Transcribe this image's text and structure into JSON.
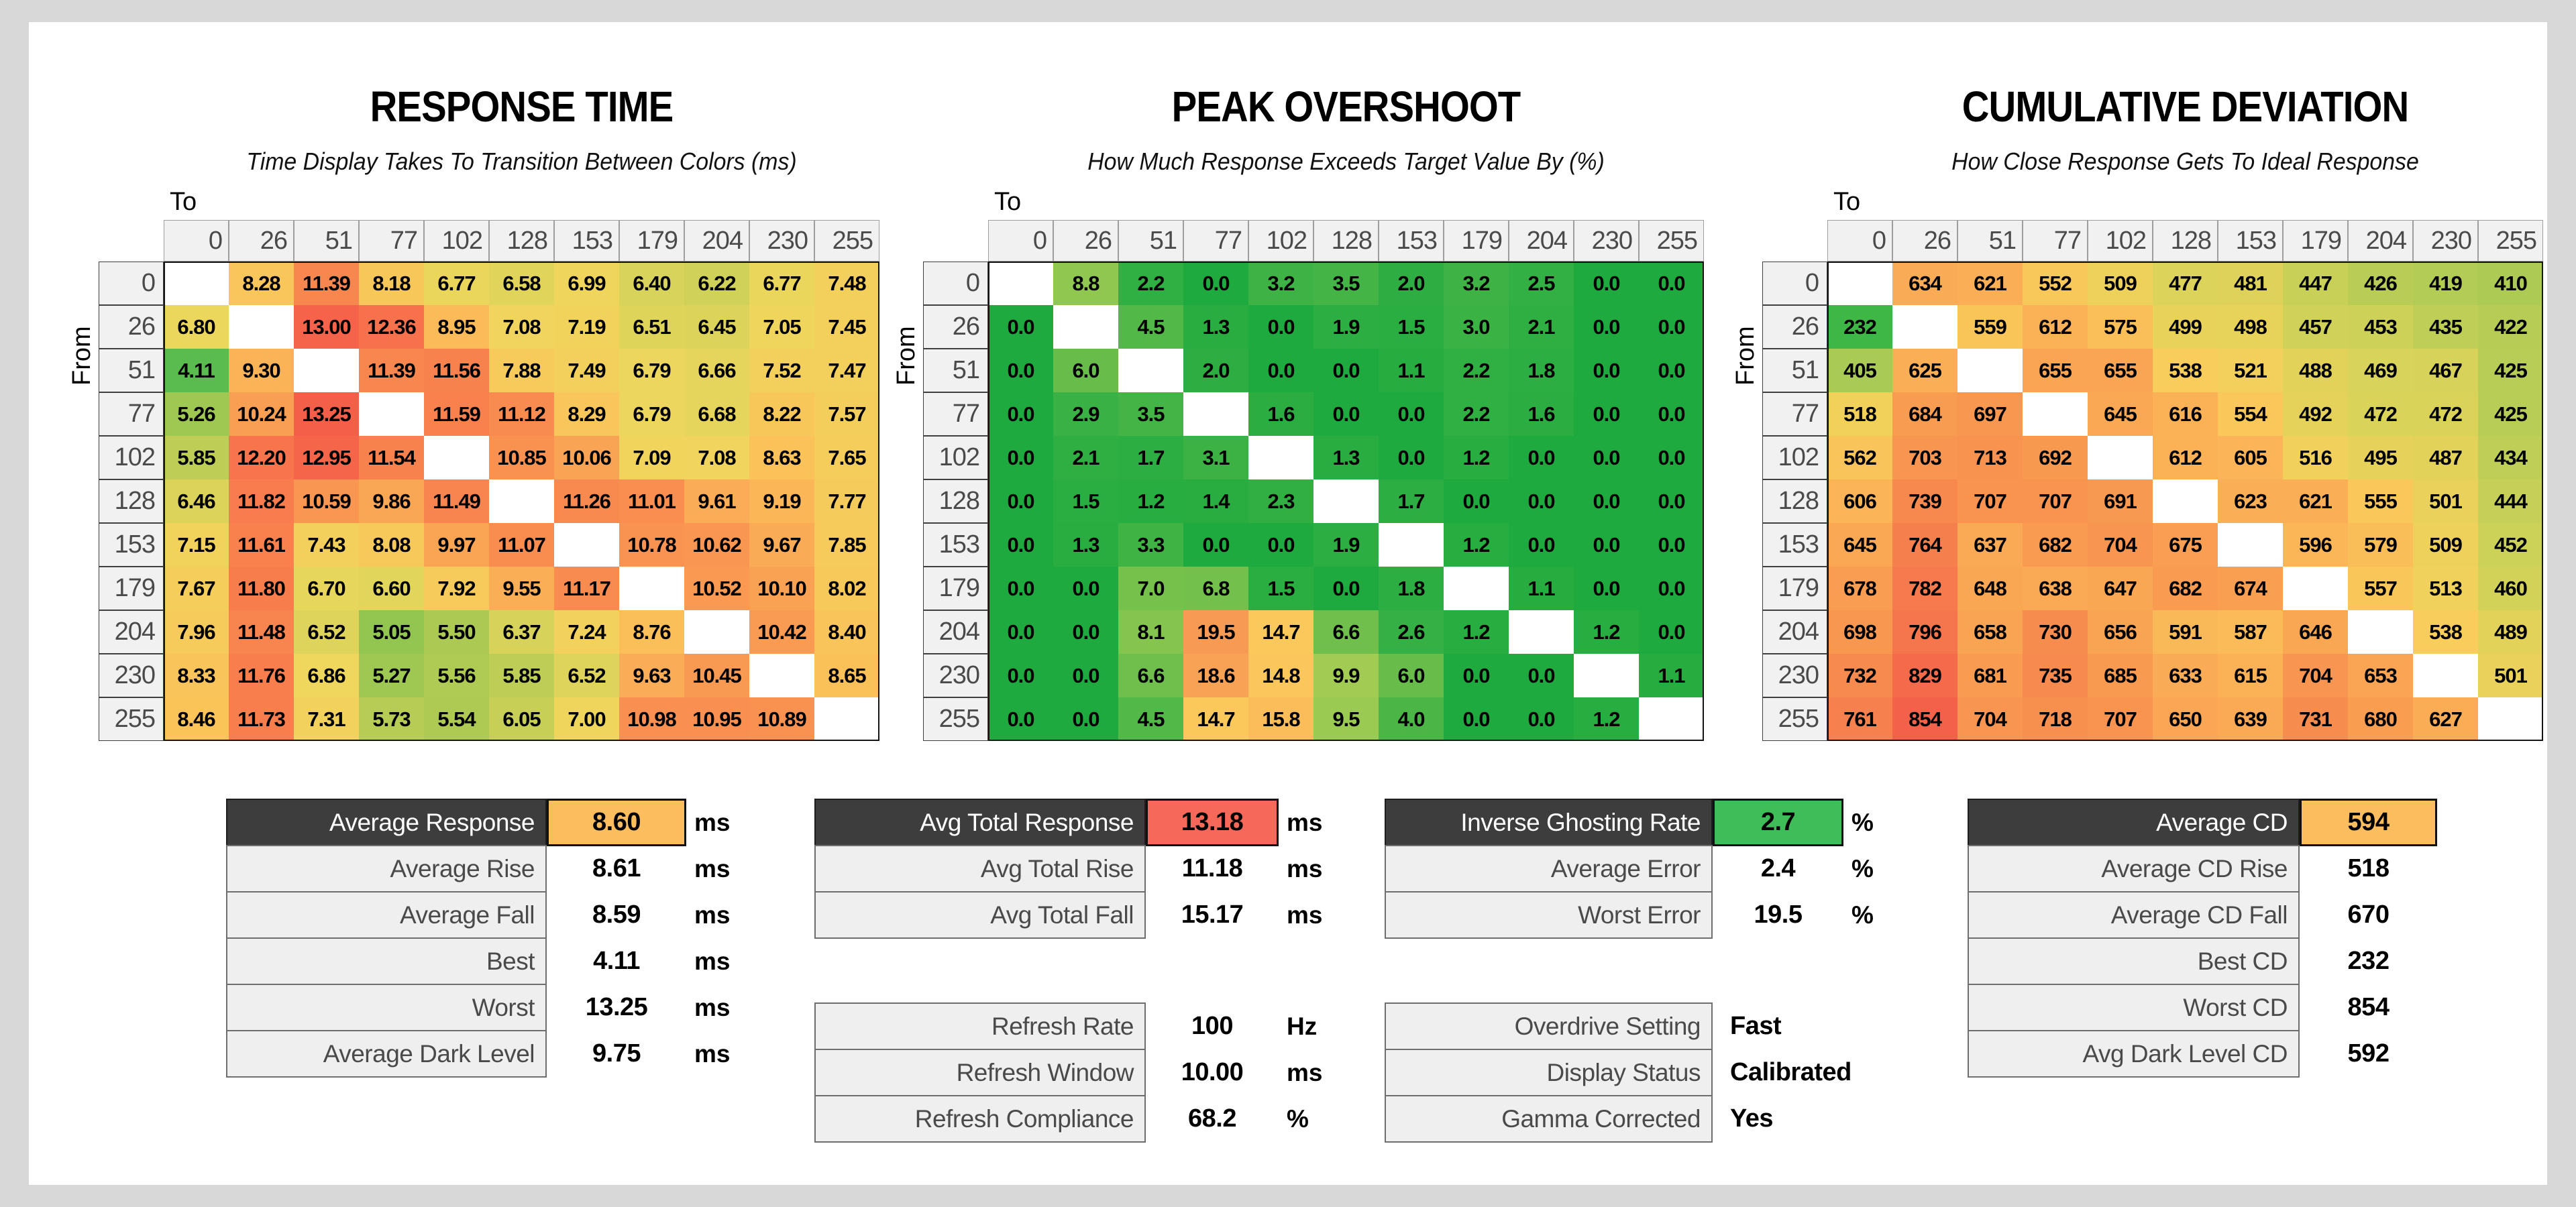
{
  "page": {
    "background": "#d8d8d8",
    "panel": "#ffffff"
  },
  "labels": {
    "to": "To",
    "from": "From"
  },
  "chart_data": [
    {
      "type": "heatmap",
      "title": "RESPONSE TIME",
      "subtitle": "Time Display Takes To Transition Between Colors (ms)",
      "unit": "ms",
      "x_label": "To",
      "y_label": "From",
      "categories": [
        "0",
        "26",
        "51",
        "77",
        "102",
        "128",
        "153",
        "179",
        "204",
        "230",
        "255"
      ],
      "decimals": 2,
      "min": 4.11,
      "max": 13.25,
      "color_stops": [
        {
          "t": 0,
          "color": "#5ABC4F"
        },
        {
          "t": 0.14,
          "color": "#A6C952"
        },
        {
          "t": 0.3,
          "color": "#EFD75D"
        },
        {
          "t": 0.5,
          "color": "#FBC159"
        },
        {
          "t": 0.68,
          "color": "#F99D53"
        },
        {
          "t": 0.85,
          "color": "#F87B4D"
        },
        {
          "t": 1,
          "color": "#F45F49"
        }
      ],
      "values": [
        [
          null,
          8.28,
          11.39,
          8.18,
          6.77,
          6.58,
          6.99,
          6.4,
          6.22,
          6.77,
          7.48
        ],
        [
          6.8,
          null,
          13.0,
          12.36,
          8.95,
          7.08,
          7.19,
          6.51,
          6.45,
          7.05,
          7.45
        ],
        [
          4.11,
          9.3,
          null,
          11.39,
          11.56,
          7.88,
          7.49,
          6.79,
          6.66,
          7.52,
          7.47
        ],
        [
          5.26,
          10.24,
          13.25,
          null,
          11.59,
          11.12,
          8.29,
          6.79,
          6.68,
          8.22,
          7.57
        ],
        [
          5.85,
          12.2,
          12.95,
          11.54,
          null,
          10.85,
          10.06,
          7.09,
          7.08,
          8.63,
          7.65
        ],
        [
          6.46,
          11.82,
          10.59,
          9.86,
          11.49,
          null,
          11.26,
          11.01,
          9.61,
          9.19,
          7.77
        ],
        [
          7.15,
          11.61,
          7.43,
          8.08,
          9.97,
          11.07,
          null,
          10.78,
          10.62,
          9.67,
          7.85
        ],
        [
          7.67,
          11.8,
          6.7,
          6.6,
          7.92,
          9.55,
          11.17,
          null,
          10.52,
          10.1,
          8.02
        ],
        [
          7.96,
          11.48,
          6.52,
          5.05,
          5.5,
          6.37,
          7.24,
          8.76,
          null,
          10.42,
          8.4
        ],
        [
          8.33,
          11.76,
          6.86,
          5.27,
          5.56,
          5.85,
          6.52,
          9.63,
          10.45,
          null,
          8.65
        ],
        [
          8.46,
          11.73,
          7.31,
          5.73,
          5.54,
          6.05,
          7.0,
          10.98,
          10.95,
          10.89,
          null
        ]
      ]
    },
    {
      "type": "heatmap",
      "title": "PEAK OVERSHOOT",
      "subtitle": "How Much Response Exceeds Target Value By (%)",
      "unit": "%",
      "x_label": "To",
      "y_label": "From",
      "categories": [
        "0",
        "26",
        "51",
        "77",
        "102",
        "128",
        "153",
        "179",
        "204",
        "230",
        "255"
      ],
      "decimals": 1,
      "min": 0,
      "max": 19.5,
      "color_stops": [
        {
          "t": 0,
          "color": "#1EAA3E"
        },
        {
          "t": 0.12,
          "color": "#31AF43"
        },
        {
          "t": 0.25,
          "color": "#58B948"
        },
        {
          "t": 0.45,
          "color": "#8FC750"
        },
        {
          "t": 0.6,
          "color": "#C0D257"
        },
        {
          "t": 0.75,
          "color": "#FBC95C"
        },
        {
          "t": 0.88,
          "color": "#FAAE57"
        },
        {
          "t": 1,
          "color": "#F79A54"
        }
      ],
      "values": [
        [
          null,
          8.8,
          2.2,
          0.0,
          3.2,
          3.5,
          2.0,
          3.2,
          2.5,
          0.0,
          0.0
        ],
        [
          0.0,
          null,
          4.5,
          1.3,
          0.0,
          1.9,
          1.5,
          3.0,
          2.1,
          0.0,
          0.0
        ],
        [
          0.0,
          6.0,
          null,
          2.0,
          0.0,
          0.0,
          1.1,
          2.2,
          1.8,
          0.0,
          0.0
        ],
        [
          0.0,
          2.9,
          3.5,
          null,
          1.6,
          0.0,
          0.0,
          2.2,
          1.6,
          0.0,
          0.0
        ],
        [
          0.0,
          2.1,
          1.7,
          3.1,
          null,
          1.3,
          0.0,
          1.2,
          0.0,
          0.0,
          0.0
        ],
        [
          0.0,
          1.5,
          1.2,
          1.4,
          2.3,
          null,
          1.7,
          0.0,
          0.0,
          0.0,
          0.0
        ],
        [
          0.0,
          1.3,
          3.3,
          0.0,
          0.0,
          1.9,
          null,
          1.2,
          0.0,
          0.0,
          0.0
        ],
        [
          0.0,
          0.0,
          7.0,
          6.8,
          1.5,
          0.0,
          1.8,
          null,
          1.1,
          0.0,
          0.0
        ],
        [
          0.0,
          0.0,
          8.1,
          19.5,
          14.7,
          6.6,
          2.6,
          1.2,
          null,
          1.2,
          0.0
        ],
        [
          0.0,
          0.0,
          6.6,
          18.6,
          14.8,
          9.9,
          6.0,
          0.0,
          0.0,
          null,
          1.1
        ],
        [
          0.0,
          0.0,
          4.5,
          14.7,
          15.8,
          9.5,
          4.0,
          0.0,
          0.0,
          1.2,
          null
        ]
      ]
    },
    {
      "type": "heatmap",
      "title": "CUMULATIVE DEVIATION",
      "subtitle": "How Close Response Gets To Ideal Response",
      "unit": "",
      "x_label": "To",
      "y_label": "From",
      "categories": [
        "0",
        "26",
        "51",
        "77",
        "102",
        "128",
        "153",
        "179",
        "204",
        "230",
        "255"
      ],
      "decimals": 0,
      "min": 232,
      "max": 854,
      "color_stops": [
        {
          "t": 0,
          "color": "#3FB747"
        },
        {
          "t": 0.25,
          "color": "#9CC752"
        },
        {
          "t": 0.38,
          "color": "#D8D35A"
        },
        {
          "t": 0.48,
          "color": "#F8D05B"
        },
        {
          "t": 0.6,
          "color": "#FBB457"
        },
        {
          "t": 0.75,
          "color": "#F89750"
        },
        {
          "t": 1,
          "color": "#F4614A"
        }
      ],
      "values": [
        [
          null,
          634,
          621,
          552,
          509,
          477,
          481,
          447,
          426,
          419,
          410
        ],
        [
          232,
          null,
          559,
          612,
          575,
          499,
          498,
          457,
          453,
          435,
          422
        ],
        [
          405,
          625,
          null,
          655,
          655,
          538,
          521,
          488,
          469,
          467,
          425
        ],
        [
          518,
          684,
          697,
          null,
          645,
          616,
          554,
          492,
          472,
          472,
          425
        ],
        [
          562,
          703,
          713,
          692,
          null,
          612,
          605,
          516,
          495,
          487,
          434
        ],
        [
          606,
          739,
          707,
          707,
          691,
          null,
          623,
          621,
          555,
          501,
          444
        ],
        [
          645,
          764,
          637,
          682,
          704,
          675,
          null,
          596,
          579,
          509,
          452
        ],
        [
          678,
          782,
          648,
          638,
          647,
          682,
          674,
          null,
          557,
          513,
          460
        ],
        [
          698,
          796,
          658,
          730,
          656,
          591,
          587,
          646,
          null,
          538,
          489
        ],
        [
          732,
          829,
          681,
          735,
          685,
          633,
          615,
          704,
          653,
          null,
          501
        ],
        [
          761,
          854,
          704,
          718,
          707,
          650,
          639,
          731,
          680,
          627,
          null
        ]
      ]
    }
  ],
  "summary_tables": [
    {
      "id": "response-summary",
      "rows": [
        {
          "label": "Average Response",
          "value": "8.60",
          "unit": "ms",
          "header": true,
          "value_color": "#FBBD5E"
        },
        {
          "label": "Average Rise",
          "value": "8.61",
          "unit": "ms"
        },
        {
          "label": "Average Fall",
          "value": "8.59",
          "unit": "ms"
        },
        {
          "label": "Best",
          "value": "4.11",
          "unit": "ms"
        },
        {
          "label": "Worst",
          "value": "13.25",
          "unit": "ms"
        },
        {
          "label": "Average Dark Level",
          "value": "9.75",
          "unit": "ms"
        }
      ]
    },
    {
      "id": "total-response-summary",
      "rows": [
        {
          "label": "Avg Total Response",
          "value": "13.18",
          "unit": "ms",
          "header": true,
          "value_color": "#F6695A"
        },
        {
          "label": "Avg Total Rise",
          "value": "11.18",
          "unit": "ms"
        },
        {
          "label": "Avg Total Fall",
          "value": "15.17",
          "unit": "ms"
        }
      ]
    },
    {
      "id": "refresh-info",
      "rows": [
        {
          "label": "Refresh Rate",
          "value": "100",
          "unit": "Hz"
        },
        {
          "label": "Refresh Window",
          "value": "10.00",
          "unit": "ms"
        },
        {
          "label": "Refresh Compliance",
          "value": "68.2",
          "unit": "%"
        }
      ]
    },
    {
      "id": "overshoot-summary",
      "rows": [
        {
          "label": "Inverse Ghosting Rate",
          "value": "2.7",
          "unit": "%",
          "header": true,
          "value_color": "#3EBD58"
        },
        {
          "label": "Average Error",
          "value": "2.4",
          "unit": "%"
        },
        {
          "label": "Worst Error",
          "value": "19.5",
          "unit": "%"
        }
      ]
    },
    {
      "id": "display-info",
      "rows": [
        {
          "label": "Overdrive Setting",
          "value": "Fast",
          "text": true
        },
        {
          "label": "Display Status",
          "value": "Calibrated",
          "text": true
        },
        {
          "label": "Gamma Corrected",
          "value": "Yes",
          "text": true
        }
      ]
    },
    {
      "id": "cd-summary",
      "rows": [
        {
          "label": "Average CD",
          "value": "594",
          "header": true,
          "value_color": "#FBBD5E"
        },
        {
          "label": "Average CD Rise",
          "value": "518"
        },
        {
          "label": "Average CD Fall",
          "value": "670"
        },
        {
          "label": "Best CD",
          "value": "232"
        },
        {
          "label": "Worst CD",
          "value": "854"
        },
        {
          "label": "Avg Dark Level CD",
          "value": "592"
        }
      ]
    }
  ]
}
